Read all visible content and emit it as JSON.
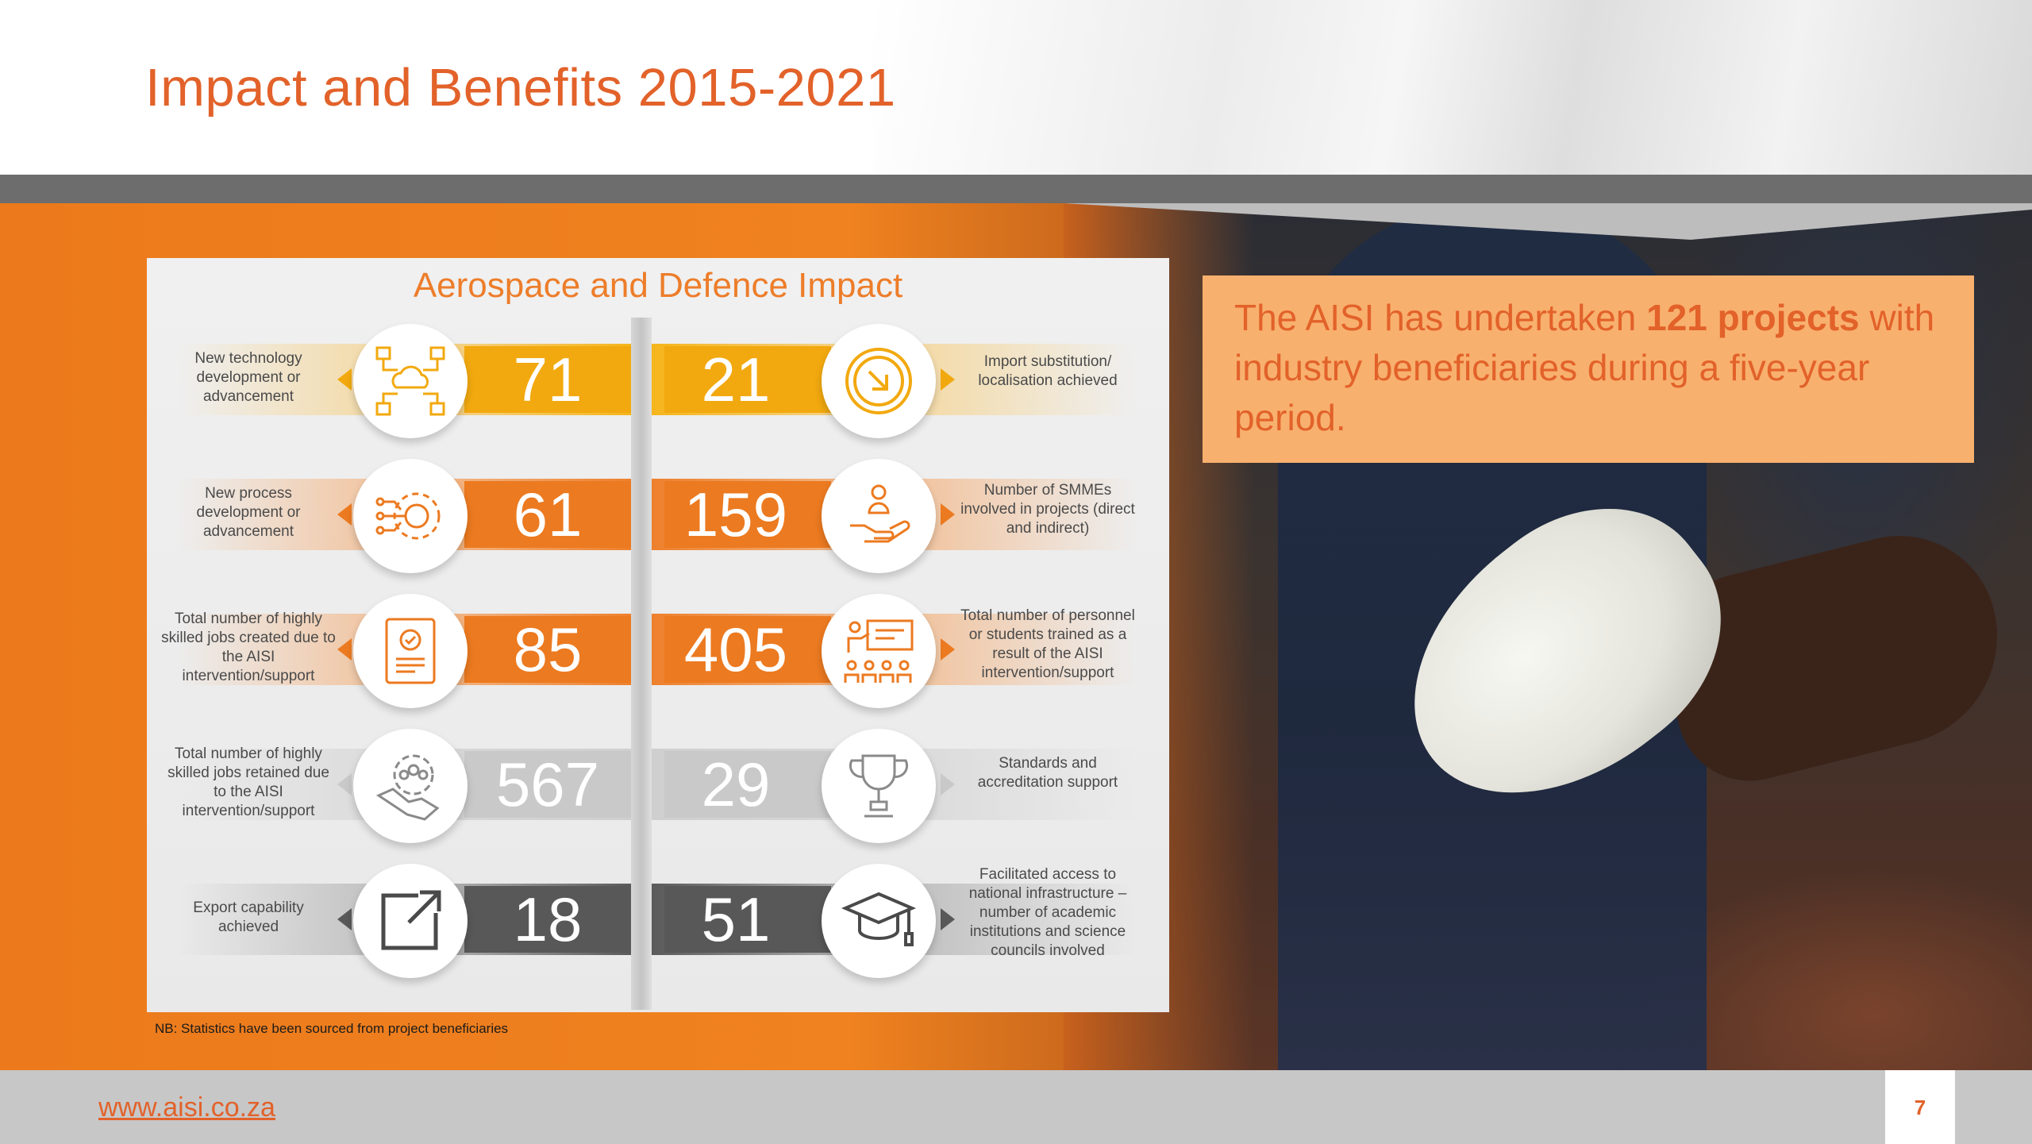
{
  "slide": {
    "title": "Impact and Benefits 2015-2021",
    "page_number": "7"
  },
  "footer": {
    "url": "www.aisi.co.za"
  },
  "highlight": {
    "prefix": "The AISI has undertaken ",
    "bold": "121 projects",
    "suffix": " with industry beneficiaries during a five-year period."
  },
  "infographic": {
    "title": "Aerospace and Defence Impact",
    "note": "NB: Statistics have been sourced from project beneficiaries",
    "rows": [
      {
        "theme": "yellow",
        "left": {
          "label": "New technology development or advancement",
          "value": "71",
          "icon": "network-cloud-icon"
        },
        "right": {
          "label": "Import substitution/ localisation achieved",
          "value": "21",
          "icon": "import-arrow-icon"
        }
      },
      {
        "theme": "orange",
        "left": {
          "label": "New process development or advancement",
          "value": "61",
          "icon": "process-gear-icon"
        },
        "right": {
          "label": "Number of SMMEs involved in projects (direct and indirect)",
          "value": "159",
          "icon": "hand-person-icon"
        }
      },
      {
        "theme": "orange",
        "left": {
          "label": "Total number of highly skilled jobs created due to the AISI intervention/support",
          "value": "85",
          "icon": "resume-document-icon"
        },
        "right": {
          "label": "Total number of personnel or students trained as a result of the AISI intervention/support",
          "value": "405",
          "icon": "classroom-presentation-icon"
        }
      },
      {
        "theme": "light",
        "left": {
          "label": "Total number of highly skilled jobs retained due to the AISI intervention/support",
          "value": "567",
          "icon": "handshake-gear-icon"
        },
        "right": {
          "label": "Standards and accreditation support",
          "value": "29",
          "icon": "trophy-icon"
        }
      },
      {
        "theme": "dark",
        "left": {
          "label": "Export capability achieved",
          "value": "18",
          "icon": "export-arrow-icon"
        },
        "right": {
          "label": "Facilitated access to national infrastructure – number of academic institutions and science councils involved",
          "value": "51",
          "icon": "graduation-cap-icon"
        }
      }
    ]
  },
  "colors": {
    "accent": "#e2622a",
    "yellow": "#f2a90f",
    "orange": "#ec7a20",
    "light_gray": "#c9c9c9",
    "dark_gray": "#585858"
  }
}
